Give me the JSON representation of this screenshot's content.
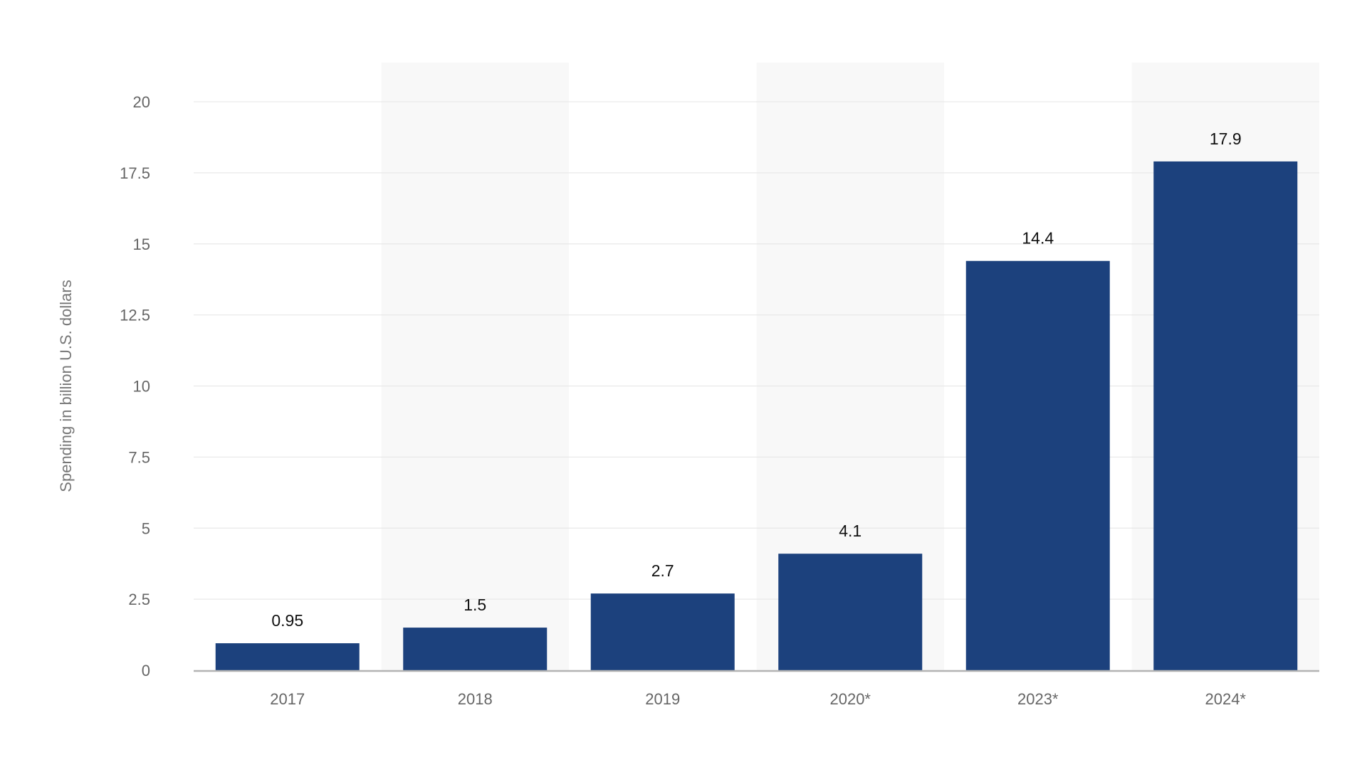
{
  "chart_data": {
    "type": "bar",
    "title": "",
    "xlabel": "",
    "ylabel": "Spending in billion U.S. dollars",
    "categories": [
      "2017",
      "2018",
      "2019",
      "2020*",
      "2023*",
      "2024*"
    ],
    "series": [
      {
        "values": [
          0.95,
          1.5,
          2.7,
          4.1,
          14.4,
          17.9
        ],
        "labels": [
          "0.95",
          "1.5",
          "2.7",
          "4.1",
          "14.4",
          "17.9"
        ]
      }
    ],
    "ylim": [
      0,
      20
    ],
    "yticks": [
      0,
      2.5,
      5,
      7.5,
      10,
      12.5,
      15,
      17.5,
      20
    ],
    "ytick_labels": [
      "0",
      "2.5",
      "5",
      "7.5",
      "10",
      "12.5",
      "15",
      "17.5",
      "20"
    ],
    "grid": true,
    "legend": "none",
    "colors": {
      "bar": "#1c417d",
      "band": "#f8f8f8",
      "grid": "#e9e9e9",
      "baseline": "#b3b3b3"
    }
  }
}
